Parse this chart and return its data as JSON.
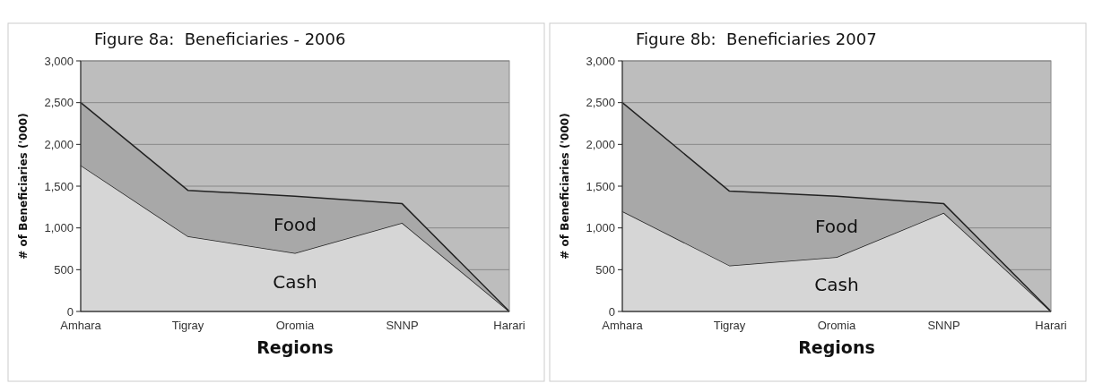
{
  "chart_data": [
    {
      "type": "area",
      "stacked": true,
      "title": "Figure 8a:  Beneficiaries - 2006",
      "xlabel": "Regions",
      "ylabel": "# of Beneficiaries ('000)",
      "categories": [
        "Amhara",
        "Tigray",
        "Oromia",
        "SNNP",
        "Harari"
      ],
      "ylim": [
        0,
        3000
      ],
      "yticks": [
        {
          "value": 0,
          "label": "0"
        },
        {
          "value": 500,
          "label": "500"
        },
        {
          "value": 1000,
          "label": "1,000"
        },
        {
          "value": 1500,
          "label": "1,500"
        },
        {
          "value": 2000,
          "label": "2,000"
        },
        {
          "value": 2500,
          "label": "2,500"
        },
        {
          "value": 3000,
          "label": "3,000"
        }
      ],
      "grid": "y",
      "series": [
        {
          "name": "Cash",
          "color": "#d6d6d6",
          "values": [
            1750,
            900,
            700,
            1060,
            0
          ]
        },
        {
          "name": "Food",
          "color": "#a8a8a8",
          "values": [
            750,
            550,
            680,
            230,
            0
          ]
        }
      ]
    },
    {
      "type": "area",
      "stacked": true,
      "title": "Figure 8b:  Beneficiaries 2007",
      "xlabel": "Regions",
      "ylabel": "# of Beneficiaries ('000)",
      "categories": [
        "Amhara",
        "Tigray",
        "Oromia",
        "SNNP",
        "Harari"
      ],
      "ylim": [
        0,
        3000
      ],
      "yticks": [
        {
          "value": 0,
          "label": "0"
        },
        {
          "value": 500,
          "label": "500"
        },
        {
          "value": 1000,
          "label": "1,000"
        },
        {
          "value": 1500,
          "label": "1,500"
        },
        {
          "value": 2000,
          "label": "2,000"
        },
        {
          "value": 2500,
          "label": "2,500"
        },
        {
          "value": 3000,
          "label": "3,000"
        }
      ],
      "grid": "y",
      "series": [
        {
          "name": "Cash",
          "color": "#d6d6d6",
          "values": [
            1200,
            550,
            650,
            1180,
            0
          ]
        },
        {
          "name": "Food",
          "color": "#a8a8a8",
          "values": [
            1300,
            890,
            730,
            110,
            0
          ]
        }
      ]
    }
  ]
}
